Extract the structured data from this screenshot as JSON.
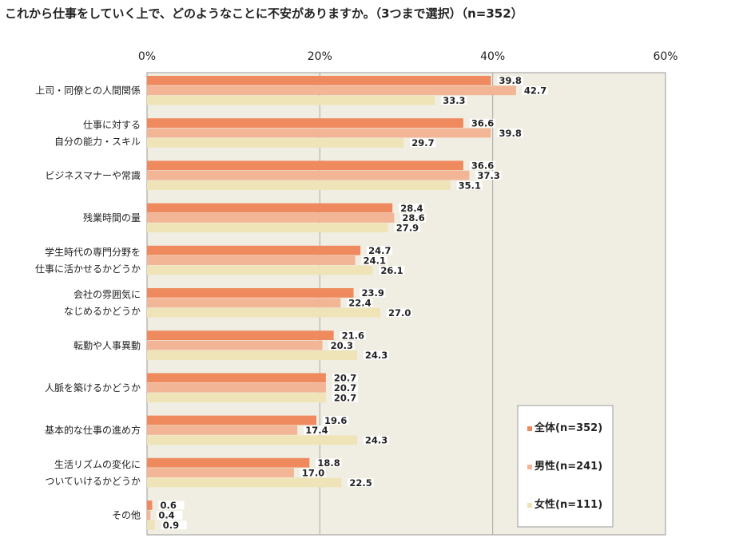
{
  "chart_data": {
    "type": "bar",
    "orientation": "horizontal",
    "title": "これから仕事をしていく上で、どのようなことに不安がありますか。（3つまで選択）（n=352）",
    "xlim": [
      0,
      60
    ],
    "x_ticks": [
      "0%",
      "20%",
      "40%",
      "60%"
    ],
    "x_tick_values": [
      0,
      20,
      40,
      60
    ],
    "categories": [
      [
        "上司・同僚との人間関係"
      ],
      [
        "仕事に対する",
        "自分の能力・スキル"
      ],
      [
        "ビジネスマナーや常識"
      ],
      [
        "残業時間の量"
      ],
      [
        "学生時代の専門分野を",
        "仕事に活かせるかどうか"
      ],
      [
        "会社の雰囲気に",
        "なじめるかどうか"
      ],
      [
        "転勤や人事異動"
      ],
      [
        "人脈を築けるかどうか"
      ],
      [
        "基本的な仕事の進め方"
      ],
      [
        "生活リズムの変化に",
        "ついていけるかどうか"
      ],
      [
        "その他"
      ]
    ],
    "series": [
      {
        "name": "全体(n=352)",
        "color": "#ef8a5f",
        "values": [
          39.8,
          36.6,
          36.6,
          28.4,
          24.7,
          23.9,
          21.6,
          20.7,
          19.6,
          18.8,
          0.6
        ],
        "labels": [
          "39.8",
          "36.6",
          "36.6",
          "28.4",
          "24.7",
          "23.9",
          "21.6",
          "20.7",
          "19.6",
          "18.8",
          "0.6"
        ]
      },
      {
        "name": "男性(n=241)",
        "color": "#f2b596",
        "values": [
          42.7,
          39.8,
          37.3,
          28.6,
          24.1,
          22.4,
          20.3,
          20.7,
          17.4,
          17.0,
          0.4
        ],
        "labels": [
          "42.7",
          "39.8",
          "37.3",
          "28.6",
          "24.1",
          "22.4",
          "20.3",
          "20.7",
          "17.4",
          "17.0",
          "0.4"
        ]
      },
      {
        "name": "女性(n=111)",
        "color": "#efe3b8",
        "values": [
          33.3,
          29.7,
          35.1,
          27.9,
          26.1,
          27.0,
          24.3,
          20.7,
          24.3,
          22.5,
          0.9
        ],
        "labels": [
          "33.3",
          "29.7",
          "35.1",
          "27.9",
          "26.1",
          "27.0",
          "24.3",
          "20.7",
          "24.3",
          "22.5",
          "0.9"
        ]
      }
    ],
    "legend_position": "bottom-right",
    "plot_background": "#f0eee2",
    "grid": true
  }
}
